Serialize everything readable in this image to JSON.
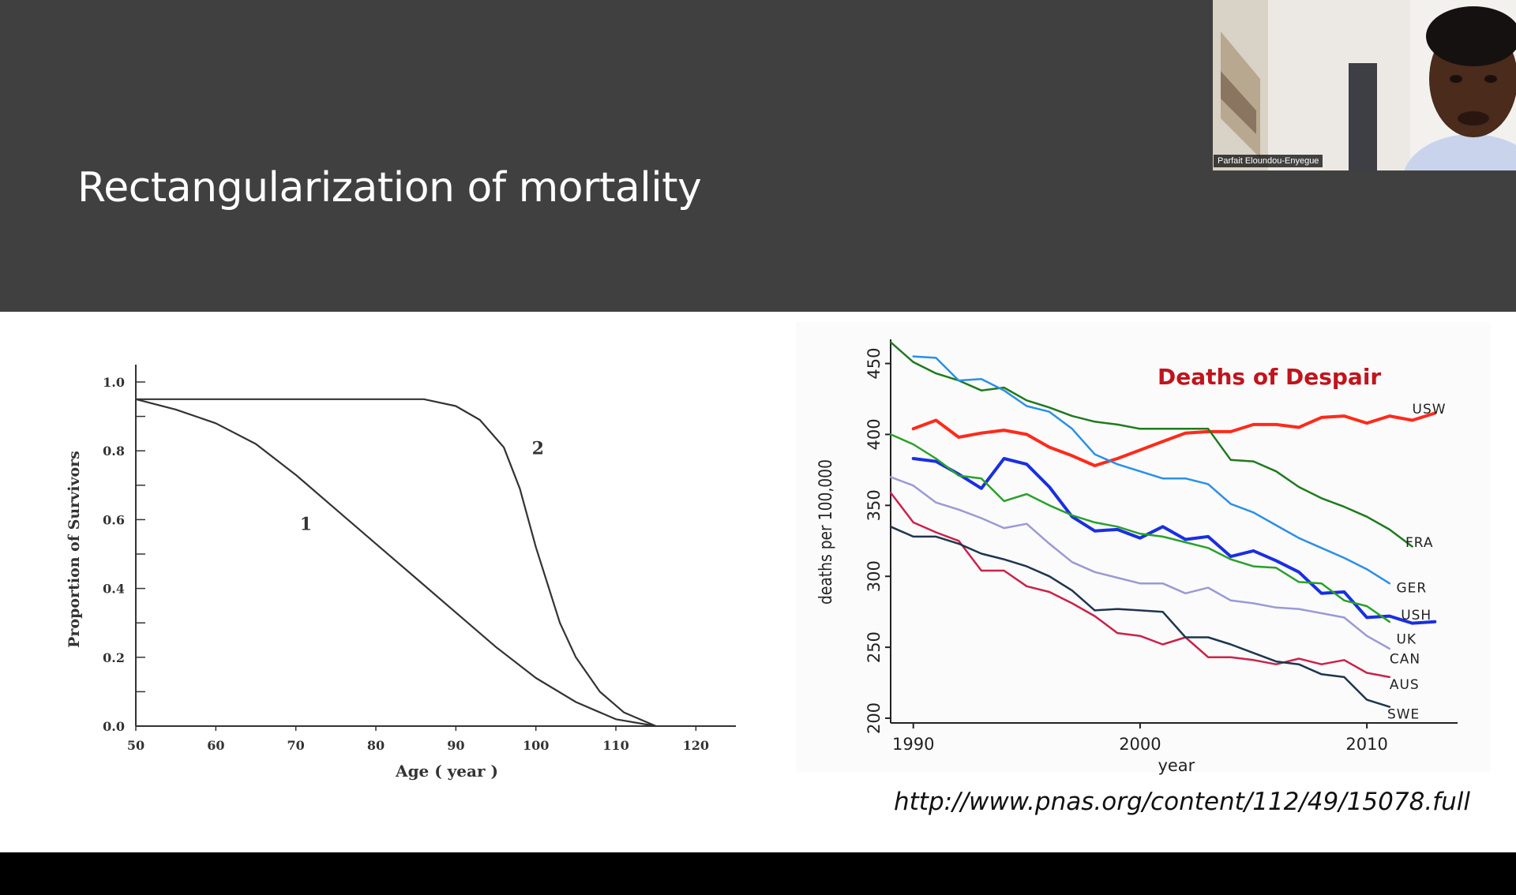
{
  "slide": {
    "title": "Rectangularization of mortality",
    "source_url": "http://www.pnas.org/content/112/49/15078.full"
  },
  "video": {
    "participant_name": "Parfait Eloundou-Enyegue"
  },
  "chart_data": [
    {
      "type": "line",
      "title": "",
      "xlabel": "Age ( year )",
      "ylabel": "Proportion of Survivors",
      "xlim": [
        50,
        125
      ],
      "ylim": [
        0,
        1.0
      ],
      "x_ticks": [
        50,
        60,
        70,
        80,
        90,
        100,
        110,
        120
      ],
      "y_ticks": [
        "0.0",
        "0.2",
        "0.4",
        "0.6",
        "0.8",
        "1.0"
      ],
      "grid": false,
      "series": [
        {
          "name": "1",
          "color": "#333333",
          "points": [
            [
              50,
              0.95
            ],
            [
              55,
              0.92
            ],
            [
              60,
              0.88
            ],
            [
              65,
              0.82
            ],
            [
              70,
              0.73
            ],
            [
              75,
              0.63
            ],
            [
              80,
              0.53
            ],
            [
              85,
              0.43
            ],
            [
              90,
              0.33
            ],
            [
              95,
              0.23
            ],
            [
              100,
              0.14
            ],
            [
              105,
              0.07
            ],
            [
              110,
              0.02
            ],
            [
              115,
              0.0
            ]
          ]
        },
        {
          "name": "2",
          "color": "#333333",
          "points": [
            [
              50,
              0.95
            ],
            [
              70,
              0.95
            ],
            [
              86,
              0.95
            ],
            [
              90,
              0.93
            ],
            [
              93,
              0.89
            ],
            [
              96,
              0.81
            ],
            [
              98,
              0.69
            ],
            [
              100,
              0.52
            ],
            [
              103,
              0.3
            ],
            [
              105,
              0.2
            ],
            [
              108,
              0.1
            ],
            [
              111,
              0.04
            ],
            [
              115,
              0.0
            ]
          ]
        }
      ],
      "annotations": [
        "1",
        "2"
      ]
    },
    {
      "type": "line",
      "title": "Deaths of Despair",
      "title_color": "#c0141c",
      "xlabel": "year",
      "ylabel": "deaths per 100,000",
      "xlim": [
        1989,
        2014
      ],
      "ylim": [
        200,
        467
      ],
      "x_ticks": [
        1990,
        2000,
        2010
      ],
      "y_ticks": [
        200,
        250,
        300,
        350,
        400,
        450
      ],
      "grid": false,
      "series": [
        {
          "name": "USW",
          "color": "#ff2a1a",
          "width": 4,
          "label_y": 418,
          "points": [
            [
              1990,
              404
            ],
            [
              1991,
              410
            ],
            [
              1992,
              398
            ],
            [
              1993,
              401
            ],
            [
              1994,
              403
            ],
            [
              1995,
              400
            ],
            [
              1996,
              391
            ],
            [
              1997,
              385
            ],
            [
              1998,
              378
            ],
            [
              1999,
              383
            ],
            [
              2000,
              389
            ],
            [
              2001,
              395
            ],
            [
              2002,
              401
            ],
            [
              2003,
              402
            ],
            [
              2004,
              402
            ],
            [
              2005,
              407
            ],
            [
              2006,
              407
            ],
            [
              2007,
              405
            ],
            [
              2008,
              412
            ],
            [
              2009,
              413
            ],
            [
              2010,
              408
            ],
            [
              2011,
              413
            ],
            [
              2012,
              410
            ],
            [
              2013,
              415
            ]
          ]
        },
        {
          "name": "FRA",
          "color": "#1f7a1f",
          "width": 2.5,
          "label_y": 324,
          "points": [
            [
              1989,
              465
            ],
            [
              1990,
              451
            ],
            [
              1991,
              443
            ],
            [
              1992,
              438
            ],
            [
              1993,
              431
            ],
            [
              1994,
              433
            ],
            [
              1995,
              424
            ],
            [
              1996,
              419
            ],
            [
              1997,
              413
            ],
            [
              1998,
              409
            ],
            [
              1999,
              407
            ],
            [
              2000,
              404
            ],
            [
              2001,
              404
            ],
            [
              2002,
              404
            ],
            [
              2003,
              404
            ],
            [
              2004,
              382
            ],
            [
              2005,
              381
            ],
            [
              2006,
              374
            ],
            [
              2007,
              363
            ],
            [
              2008,
              355
            ],
            [
              2009,
              349
            ],
            [
              2010,
              342
            ],
            [
              2011,
              333
            ],
            [
              2012,
              321
            ]
          ]
        },
        {
          "name": "GER",
          "color": "#2b8fe8",
          "width": 2.5,
          "label_y": 292,
          "points": [
            [
              1990,
              455
            ],
            [
              1991,
              454
            ],
            [
              1992,
              438
            ],
            [
              1993,
              439
            ],
            [
              1994,
              431
            ],
            [
              1995,
              420
            ],
            [
              1996,
              416
            ],
            [
              1997,
              404
            ],
            [
              1998,
              386
            ],
            [
              1999,
              379
            ],
            [
              2000,
              374
            ],
            [
              2001,
              369
            ],
            [
              2002,
              369
            ],
            [
              2003,
              365
            ],
            [
              2004,
              351
            ],
            [
              2005,
              345
            ],
            [
              2006,
              336
            ],
            [
              2007,
              327
            ],
            [
              2008,
              320
            ],
            [
              2009,
              313
            ],
            [
              2010,
              305
            ],
            [
              2011,
              295
            ]
          ]
        },
        {
          "name": "USH",
          "color": "#1a2fe0",
          "width": 4,
          "label_y": 273,
          "points": [
            [
              1990,
              383
            ],
            [
              1991,
              381
            ],
            [
              1992,
              372
            ],
            [
              1993,
              362
            ],
            [
              1994,
              383
            ],
            [
              1995,
              379
            ],
            [
              1996,
              363
            ],
            [
              1997,
              342
            ],
            [
              1998,
              332
            ],
            [
              1999,
              333
            ],
            [
              2000,
              327
            ],
            [
              2001,
              335
            ],
            [
              2002,
              326
            ],
            [
              2003,
              328
            ],
            [
              2004,
              314
            ],
            [
              2005,
              318
            ],
            [
              2006,
              311
            ],
            [
              2007,
              303
            ],
            [
              2008,
              288
            ],
            [
              2009,
              289
            ],
            [
              2010,
              271
            ],
            [
              2011,
              272
            ],
            [
              2012,
              267
            ],
            [
              2013,
              268
            ]
          ]
        },
        {
          "name": "UK",
          "color": "#2aa02a",
          "width": 2.5,
          "label_y": 256,
          "points": [
            [
              1989,
              400
            ],
            [
              1990,
              393
            ],
            [
              1991,
              383
            ],
            [
              1992,
              371
            ],
            [
              1993,
              369
            ],
            [
              1994,
              353
            ],
            [
              1995,
              358
            ],
            [
              1996,
              350
            ],
            [
              1997,
              343
            ],
            [
              1998,
              338
            ],
            [
              1999,
              335
            ],
            [
              2000,
              330
            ],
            [
              2001,
              328
            ],
            [
              2002,
              324
            ],
            [
              2003,
              320
            ],
            [
              2004,
              312
            ],
            [
              2005,
              307
            ],
            [
              2006,
              306
            ],
            [
              2007,
              296
            ],
            [
              2008,
              295
            ],
            [
              2009,
              283
            ],
            [
              2010,
              279
            ],
            [
              2011,
              268
            ]
          ]
        },
        {
          "name": "CAN",
          "color": "#9a9ad6",
          "width": 2.5,
          "label_y": 242,
          "points": [
            [
              1989,
              370
            ],
            [
              1990,
              364
            ],
            [
              1991,
              352
            ],
            [
              1992,
              347
            ],
            [
              1993,
              341
            ],
            [
              1994,
              334
            ],
            [
              1995,
              337
            ],
            [
              1996,
              323
            ],
            [
              1997,
              310
            ],
            [
              1998,
              303
            ],
            [
              1999,
              299
            ],
            [
              2000,
              295
            ],
            [
              2001,
              295
            ],
            [
              2002,
              288
            ],
            [
              2003,
              292
            ],
            [
              2004,
              283
            ],
            [
              2005,
              281
            ],
            [
              2006,
              278
            ],
            [
              2007,
              277
            ],
            [
              2008,
              274
            ],
            [
              2009,
              271
            ],
            [
              2010,
              258
            ],
            [
              2011,
              249
            ]
          ]
        },
        {
          "name": "AUS",
          "color": "#c8234a",
          "width": 2.5,
          "label_y": 224,
          "points": [
            [
              1989,
              359
            ],
            [
              1990,
              338
            ],
            [
              1991,
              331
            ],
            [
              1992,
              325
            ],
            [
              1993,
              304
            ],
            [
              1994,
              304
            ],
            [
              1995,
              293
            ],
            [
              1996,
              289
            ],
            [
              1997,
              281
            ],
            [
              1998,
              272
            ],
            [
              1999,
              260
            ],
            [
              2000,
              258
            ],
            [
              2001,
              252
            ],
            [
              2002,
              257
            ],
            [
              2003,
              243
            ],
            [
              2004,
              243
            ],
            [
              2005,
              241
            ],
            [
              2006,
              238
            ],
            [
              2007,
              242
            ],
            [
              2008,
              238
            ],
            [
              2009,
              241
            ],
            [
              2010,
              232
            ],
            [
              2011,
              229
            ]
          ]
        },
        {
          "name": "SWE",
          "color": "#1e3550",
          "width": 2.5,
          "label_y": 203,
          "points": [
            [
              1989,
              335
            ],
            [
              1990,
              328
            ],
            [
              1991,
              328
            ],
            [
              1992,
              323
            ],
            [
              1993,
              316
            ],
            [
              1994,
              312
            ],
            [
              1995,
              307
            ],
            [
              1996,
              300
            ],
            [
              1997,
              290
            ],
            [
              1998,
              276
            ],
            [
              1999,
              277
            ],
            [
              2000,
              276
            ],
            [
              2001,
              275
            ],
            [
              2002,
              257
            ],
            [
              2003,
              257
            ],
            [
              2004,
              252
            ],
            [
              2005,
              246
            ],
            [
              2006,
              240
            ],
            [
              2007,
              238
            ],
            [
              2008,
              231
            ],
            [
              2009,
              229
            ],
            [
              2010,
              213
            ],
            [
              2011,
              208
            ]
          ]
        }
      ]
    }
  ]
}
